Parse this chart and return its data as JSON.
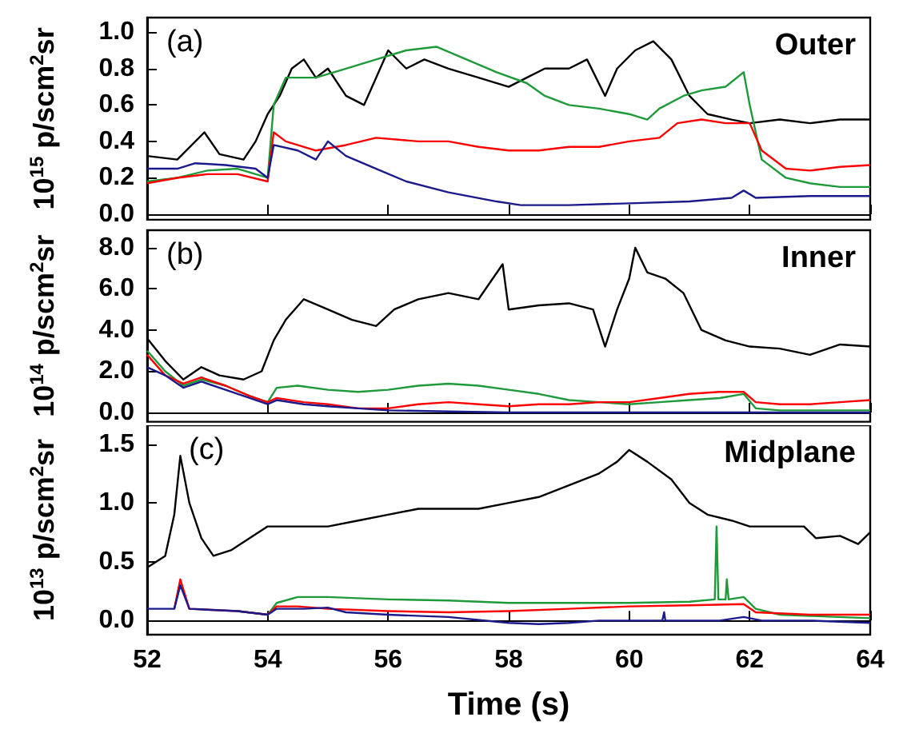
{
  "chart_data": [
    {
      "type": "line",
      "ylabel": "10$^{15}$ p/scm$^{2}$sr",
      "annotations": [
        "(a)",
        "Outer"
      ],
      "xlim": [
        52,
        64
      ],
      "xticks": [
        52,
        54,
        56,
        58,
        60,
        62,
        64
      ],
      "ylim": [
        -0.03,
        1.08
      ],
      "yticks": [
        {
          "value": 0,
          "label": "0.0"
        },
        0.2,
        0.4,
        0.6,
        0.8,
        {
          "value": 1,
          "label": "1.0"
        }
      ],
      "tick_labels": "y",
      "series": [
        {
          "color": "#000000",
          "x": [
            52,
            52.5,
            52.95,
            53.2,
            53.6,
            53.8,
            54.0,
            54.2,
            54.4,
            54.6,
            54.8,
            55.0,
            55.3,
            55.6,
            55.8,
            56.0,
            56.3,
            56.6,
            57.0,
            57.5,
            58.0,
            58.3,
            58.6,
            59.0,
            59.3,
            59.6,
            59.8,
            60.1,
            60.4,
            60.7,
            61.0,
            61.3,
            61.7,
            62.0,
            62.5,
            63.0,
            63.5,
            64.0
          ],
          "values": [
            0.32,
            0.3,
            0.45,
            0.33,
            0.3,
            0.4,
            0.55,
            0.65,
            0.8,
            0.85,
            0.75,
            0.8,
            0.65,
            0.6,
            0.75,
            0.9,
            0.8,
            0.85,
            0.8,
            0.75,
            0.7,
            0.75,
            0.8,
            0.8,
            0.85,
            0.65,
            0.8,
            0.9,
            0.95,
            0.85,
            0.65,
            0.55,
            0.52,
            0.5,
            0.52,
            0.5,
            0.52,
            0.52
          ]
        },
        {
          "color": "#1f9a3a",
          "x": [
            52,
            52.5,
            53,
            53.5,
            54.0,
            54.1,
            54.3,
            54.8,
            55.3,
            55.8,
            56.3,
            56.8,
            57.3,
            57.8,
            58.3,
            58.6,
            59.0,
            59.5,
            60.0,
            60.3,
            60.5,
            60.9,
            61.2,
            61.6,
            61.9,
            62.0,
            62.2,
            62.6,
            63.0,
            63.5,
            64.0
          ],
          "values": [
            0.18,
            0.2,
            0.24,
            0.25,
            0.2,
            0.6,
            0.75,
            0.75,
            0.8,
            0.85,
            0.9,
            0.92,
            0.85,
            0.78,
            0.72,
            0.65,
            0.6,
            0.58,
            0.55,
            0.52,
            0.58,
            0.65,
            0.68,
            0.7,
            0.78,
            0.6,
            0.3,
            0.2,
            0.17,
            0.15,
            0.15
          ]
        },
        {
          "color": "#ff0000",
          "x": [
            52,
            52.5,
            53,
            53.5,
            54.0,
            54.1,
            54.3,
            54.8,
            55.3,
            55.8,
            56.5,
            57.0,
            57.5,
            58.0,
            58.5,
            59.0,
            59.5,
            60.0,
            60.5,
            60.8,
            61.2,
            61.6,
            62.0,
            62.2,
            62.6,
            63.0,
            63.5,
            64.0
          ],
          "values": [
            0.17,
            0.2,
            0.22,
            0.22,
            0.18,
            0.45,
            0.4,
            0.35,
            0.38,
            0.42,
            0.4,
            0.4,
            0.37,
            0.35,
            0.35,
            0.37,
            0.37,
            0.4,
            0.42,
            0.5,
            0.52,
            0.5,
            0.5,
            0.35,
            0.25,
            0.24,
            0.26,
            0.27
          ]
        },
        {
          "color": "#1a1a8c",
          "x": [
            52,
            52.5,
            52.8,
            53.3,
            53.8,
            54.0,
            54.1,
            54.5,
            54.8,
            55.0,
            55.3,
            55.8,
            56.3,
            57.0,
            57.8,
            58.2,
            59.0,
            60.0,
            61.0,
            61.7,
            61.9,
            62.1,
            63.0,
            64.0
          ],
          "values": [
            0.25,
            0.25,
            0.28,
            0.27,
            0.25,
            0.2,
            0.38,
            0.35,
            0.3,
            0.4,
            0.32,
            0.25,
            0.18,
            0.12,
            0.07,
            0.05,
            0.05,
            0.06,
            0.07,
            0.09,
            0.13,
            0.09,
            0.1,
            0.1
          ]
        }
      ]
    },
    {
      "type": "line",
      "ylabel": "10$^{14}$ p/scm$^{2}$sr",
      "annotations": [
        "(b)",
        "Inner"
      ],
      "xlim": [
        52,
        64
      ],
      "xticks": [
        52,
        54,
        56,
        58,
        60,
        62,
        64
      ],
      "ylim": [
        -0.45,
        8.85
      ],
      "yticks": [
        {
          "value": 0,
          "label": "0.0"
        },
        {
          "value": 2,
          "label": "2.0"
        },
        {
          "value": 4,
          "label": "4.0"
        },
        {
          "value": 6,
          "label": "6.0"
        },
        {
          "value": 8,
          "label": "8.0"
        }
      ],
      "tick_labels": "y",
      "series": [
        {
          "color": "#000000",
          "x": [
            52,
            52.3,
            52.6,
            52.9,
            53.2,
            53.6,
            53.9,
            54.1,
            54.3,
            54.6,
            55.0,
            55.4,
            55.8,
            56.1,
            56.5,
            57.0,
            57.5,
            57.9,
            58.0,
            58.5,
            59.0,
            59.4,
            59.6,
            59.8,
            60.0,
            60.1,
            60.3,
            60.6,
            60.9,
            61.2,
            61.6,
            62.0,
            62.5,
            63.0,
            63.5,
            64.0
          ],
          "values": [
            3.6,
            2.5,
            1.6,
            2.2,
            1.8,
            1.6,
            2.0,
            3.5,
            4.5,
            5.5,
            5.0,
            4.5,
            4.2,
            5.0,
            5.5,
            5.8,
            5.5,
            7.2,
            5.0,
            5.2,
            5.3,
            5.0,
            3.2,
            5.0,
            6.5,
            8.0,
            6.8,
            6.5,
            5.8,
            4.0,
            3.5,
            3.2,
            3.1,
            2.8,
            3.3,
            3.2
          ]
        },
        {
          "color": "#1f9a3a",
          "x": [
            52,
            52.3,
            52.6,
            52.9,
            53.3,
            53.7,
            54.0,
            54.15,
            54.5,
            55.0,
            55.5,
            56.0,
            56.5,
            57.0,
            57.5,
            58.0,
            58.5,
            59.0,
            59.5,
            60.0,
            60.5,
            61.0,
            61.5,
            61.9,
            62.1,
            62.5,
            63.0,
            64.0
          ],
          "values": [
            3.0,
            2.0,
            1.3,
            1.6,
            1.3,
            0.8,
            0.5,
            1.2,
            1.3,
            1.1,
            1.0,
            1.1,
            1.3,
            1.4,
            1.3,
            1.1,
            0.9,
            0.6,
            0.5,
            0.4,
            0.5,
            0.6,
            0.7,
            0.9,
            0.2,
            0.1,
            0.1,
            0.1
          ]
        },
        {
          "color": "#ff0000",
          "x": [
            52,
            52.3,
            52.6,
            52.9,
            53.3,
            53.7,
            54.0,
            54.15,
            54.6,
            55.0,
            55.5,
            56.0,
            56.5,
            57.0,
            57.5,
            58.0,
            58.5,
            59.0,
            59.5,
            60.0,
            60.5,
            61.0,
            61.5,
            61.9,
            62.1,
            62.5,
            63.0,
            63.5,
            64.0
          ],
          "values": [
            2.8,
            1.8,
            1.4,
            1.7,
            1.3,
            0.8,
            0.5,
            0.7,
            0.5,
            0.4,
            0.2,
            0.2,
            0.4,
            0.5,
            0.4,
            0.3,
            0.4,
            0.4,
            0.5,
            0.5,
            0.7,
            0.9,
            1.0,
            1.0,
            0.5,
            0.4,
            0.4,
            0.5,
            0.6
          ]
        },
        {
          "color": "#1a1a8c",
          "x": [
            52,
            52.3,
            52.6,
            52.9,
            53.3,
            53.7,
            54.0,
            54.15,
            54.6,
            55.0,
            55.5,
            56.0,
            57.0,
            58.0,
            60.0,
            62.0,
            64.0
          ],
          "values": [
            2.2,
            1.8,
            1.2,
            1.5,
            1.1,
            0.7,
            0.4,
            0.6,
            0.4,
            0.3,
            0.2,
            0.1,
            0.05,
            0.0,
            0.0,
            0.0,
            0.0
          ]
        }
      ]
    },
    {
      "type": "line",
      "ylabel": "10$^{13}$ p/scm$^{2}$sr",
      "xlabel": "Time (s)",
      "annotations": [
        "(c)",
        "Midplane"
      ],
      "xlim": [
        52,
        64
      ],
      "xticks": [
        52,
        54,
        56,
        58,
        60,
        62,
        64
      ],
      "ylim": [
        -0.12,
        1.66
      ],
      "yticks": [
        {
          "value": 0,
          "label": "0.0"
        },
        0.5,
        {
          "value": 1,
          "label": "1.0"
        },
        1.5
      ],
      "series": [
        {
          "color": "#000000",
          "x": [
            52,
            52.3,
            52.45,
            52.55,
            52.7,
            52.9,
            53.1,
            53.4,
            53.7,
            54.0,
            54.5,
            55.0,
            55.5,
            56.0,
            56.5,
            57.0,
            57.5,
            58.0,
            58.5,
            59.0,
            59.5,
            59.8,
            60.0,
            60.3,
            60.7,
            61.0,
            61.3,
            61.7,
            62.0,
            62.5,
            62.9,
            63.1,
            63.5,
            63.8,
            64.0
          ],
          "values": [
            0.45,
            0.55,
            0.9,
            1.4,
            1.0,
            0.7,
            0.55,
            0.6,
            0.7,
            0.8,
            0.8,
            0.8,
            0.85,
            0.9,
            0.95,
            0.95,
            0.95,
            1.0,
            1.05,
            1.15,
            1.25,
            1.35,
            1.45,
            1.35,
            1.2,
            1.0,
            0.9,
            0.85,
            0.8,
            0.8,
            0.8,
            0.7,
            0.72,
            0.65,
            0.75
          ]
        },
        {
          "color": "#1f9a3a",
          "x": [
            53.5,
            54.0,
            54.15,
            54.5,
            55.0,
            55.5,
            56.0,
            57.0,
            58.0,
            59.0,
            60.0,
            61.0,
            61.42,
            61.45,
            61.48,
            61.6,
            61.62,
            61.65,
            61.9,
            62.1,
            62.5,
            63.0,
            64.0
          ],
          "values": [
            0.08,
            0.05,
            0.15,
            0.2,
            0.2,
            0.19,
            0.18,
            0.17,
            0.15,
            0.15,
            0.15,
            0.16,
            0.18,
            0.8,
            0.18,
            0.18,
            0.35,
            0.18,
            0.2,
            0.1,
            0.05,
            0.04,
            0.02
          ]
        },
        {
          "color": "#ff0000",
          "x": [
            52.45,
            52.55,
            52.7,
            53.5,
            54.0,
            54.15,
            54.5,
            55.0,
            56.0,
            57.0,
            58.0,
            59.0,
            60.0,
            61.0,
            61.9,
            62.1,
            63.0,
            64.0
          ],
          "values": [
            0.1,
            0.35,
            0.1,
            0.08,
            0.05,
            0.12,
            0.12,
            0.1,
            0.08,
            0.07,
            0.08,
            0.1,
            0.12,
            0.13,
            0.14,
            0.07,
            0.05,
            0.05
          ]
        },
        {
          "color": "#1a1a8c",
          "x": [
            52,
            52.45,
            52.55,
            52.7,
            53.5,
            54.0,
            54.15,
            54.6,
            55.0,
            55.3,
            56.0,
            57.0,
            58.0,
            58.5,
            59.0,
            59.5,
            60.0,
            60.55,
            60.58,
            60.6,
            61.0,
            61.5,
            61.9,
            62.2,
            63.0,
            64.0
          ],
          "values": [
            0.1,
            0.1,
            0.3,
            0.1,
            0.08,
            0.05,
            0.1,
            0.1,
            0.11,
            0.07,
            0.05,
            0.03,
            -0.02,
            -0.03,
            -0.02,
            0.0,
            0.0,
            0.0,
            0.07,
            0.0,
            0.0,
            0.0,
            0.03,
            0.0,
            0.0,
            -0.02
          ]
        }
      ]
    }
  ]
}
